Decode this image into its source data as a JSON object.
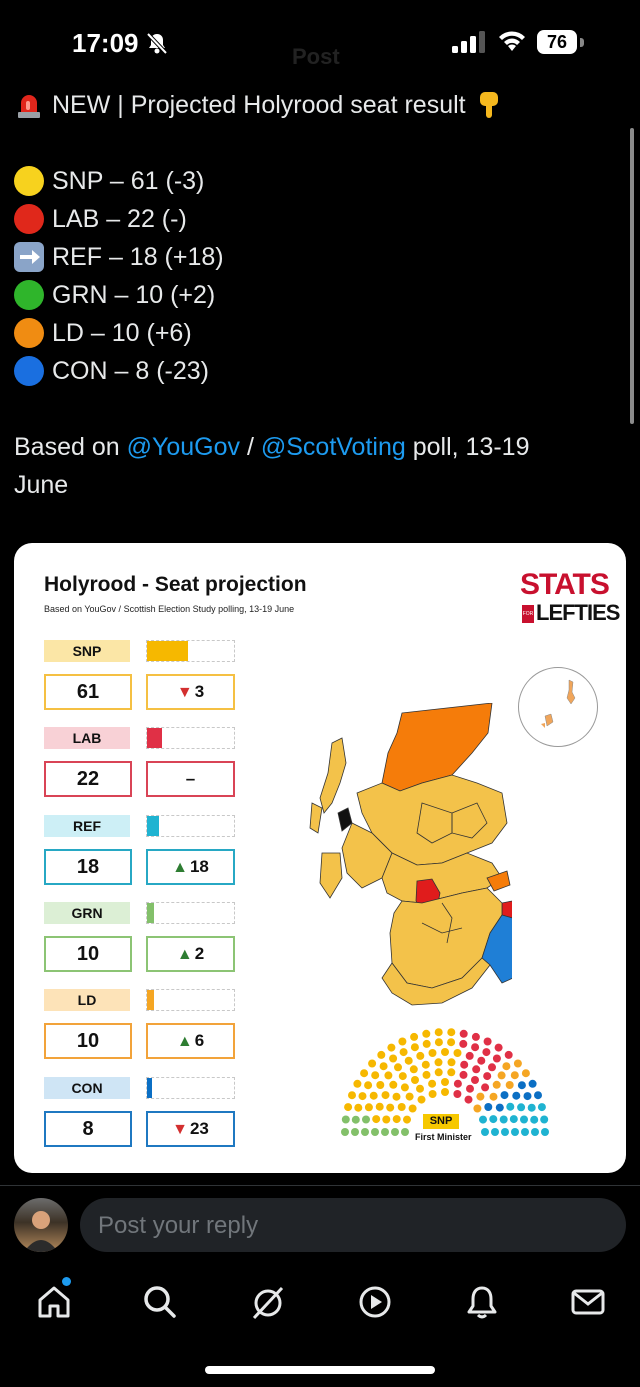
{
  "status_bar": {
    "time": "17:09",
    "battery": "76"
  },
  "header": {
    "title": "Post"
  },
  "tweet": {
    "headline": "NEW | Projected Holyrood seat result",
    "results": [
      {
        "text": "SNP – 61 (-3)",
        "emoji_color": "#f7d21e",
        "emoji": "yellow-circle"
      },
      {
        "text": "LAB – 22 (-)",
        "emoji_color": "#e0281b",
        "emoji": "red-circle"
      },
      {
        "text": "REF – 18 (+18)",
        "emoji_color": "#8aa4c8",
        "emoji": "right-arrow-square"
      },
      {
        "text": "GRN – 10 (+2)",
        "emoji_color": "#2fb52b",
        "emoji": "green-circle"
      },
      {
        "text": "LD – 10 (+6)",
        "emoji_color": "#f08c12",
        "emoji": "orange-circle"
      },
      {
        "text": "CON – 8 (-23)",
        "emoji_color": "#1a6fe0",
        "emoji": "blue-circle"
      }
    ],
    "source_prefix": "Based on ",
    "mention1": "@YouGov",
    "separator": " / ",
    "mention2": "@ScotVoting",
    "source_suffix": " poll, 13-19",
    "source_line2": "June"
  },
  "card": {
    "title": "Holyrood - Seat projection",
    "subtitle": "Based on YouGov / Scottish Election Study polling, 13-19 June",
    "logo_line1": "STATS",
    "logo_for": "FOR",
    "logo_line2": "LEFTIES",
    "parties": [
      {
        "label": "SNP",
        "seats": "61",
        "change": "3",
        "direction": "down",
        "bar_fraction": 0.47,
        "color": "#f6b800",
        "label_bg": "#fbe6a6",
        "border": "#f5c043"
      },
      {
        "label": "LAB",
        "seats": "22",
        "change": "–",
        "direction": "none",
        "bar_fraction": 0.17,
        "color": "#e03046",
        "label_bg": "#f8d1d6",
        "border": "#d94456"
      },
      {
        "label": "REF",
        "seats": "18",
        "change": "18",
        "direction": "up",
        "bar_fraction": 0.14,
        "color": "#1fb3d1",
        "label_bg": "#cdeff6",
        "border": "#27a8c4"
      },
      {
        "label": "GRN",
        "seats": "10",
        "change": "2",
        "direction": "up",
        "bar_fraction": 0.08,
        "color": "#83c06a",
        "label_bg": "#dcefd5",
        "border": "#8cc474"
      },
      {
        "label": "LD",
        "seats": "10",
        "change": "6",
        "direction": "up",
        "bar_fraction": 0.08,
        "color": "#f5a623",
        "label_bg": "#fde3b8",
        "border": "#f2a33a"
      },
      {
        "label": "CON",
        "seats": "8",
        "change": "23",
        "direction": "down",
        "bar_fraction": 0.06,
        "color": "#0b6fc4",
        "label_bg": "#cfe5f5",
        "border": "#1f78c1"
      }
    ],
    "parliament_tag": "SNP",
    "parliament_caption": "First Minister"
  },
  "reply": {
    "placeholder": "Post your reply"
  },
  "nav": {
    "items": [
      "home-icon",
      "search-icon",
      "grok-icon",
      "video-icon",
      "notifications-icon",
      "messages-icon"
    ]
  }
}
